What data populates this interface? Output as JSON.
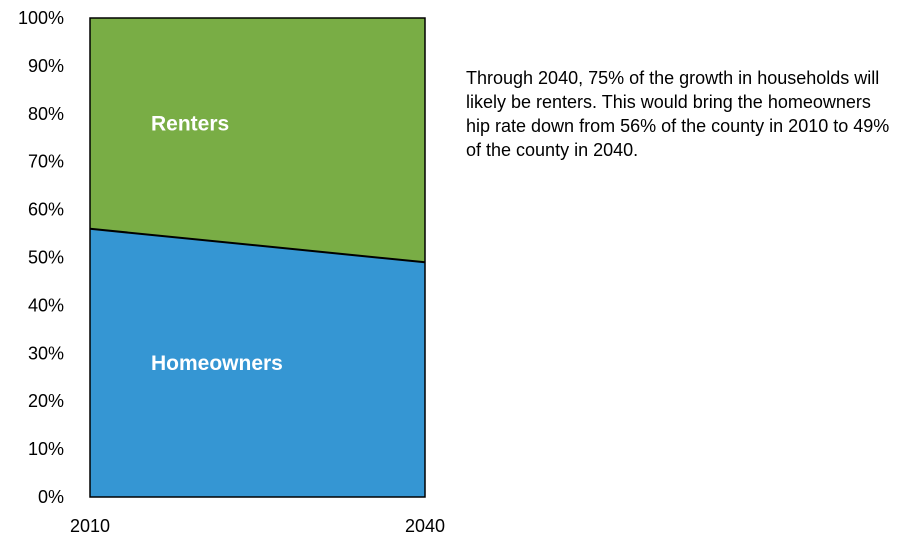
{
  "chart_data": {
    "type": "area",
    "stacking": "percent",
    "x": [
      "2010",
      "2040"
    ],
    "series": [
      {
        "name": "Homeowners",
        "values": [
          56,
          49
        ],
        "color": "#3596d3"
      },
      {
        "name": "Renters",
        "values": [
          44,
          51
        ],
        "color": "#79ad45"
      }
    ],
    "ylim": [
      0,
      100
    ],
    "yticks": [
      "0%",
      "10%",
      "20%",
      "30%",
      "40%",
      "50%",
      "60%",
      "70%",
      "80%",
      "90%",
      "100%"
    ],
    "xlabel": "",
    "ylabel": "",
    "title": "",
    "grid": false,
    "legend": "none (labels drawn inside areas)"
  },
  "annotation": "Through 2040, 75% of the growth in households will likely be renters. This would bring the homeowners hip rate down from 56% of the county in 2010 to 49% of the county in 2040."
}
